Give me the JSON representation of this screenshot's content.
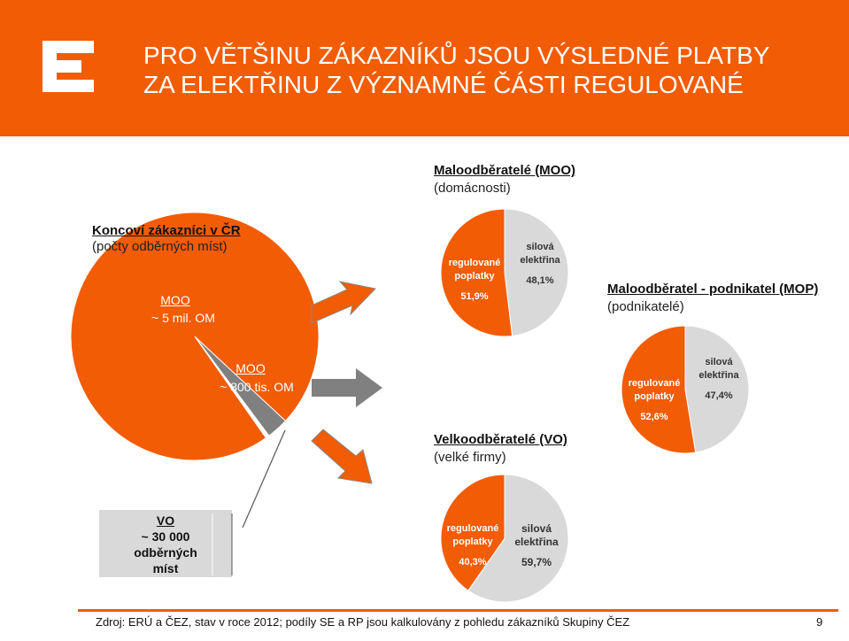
{
  "header": {
    "title_line1": "PRO VĚTŠINU ZÁKAZNÍKŮ JSOU VÝSLEDNÉ PLATBY",
    "title_line2": "ZA ELEKTŘINU Z VÝZNAMNÉ ČÁSTI REGULOVANÉ",
    "logo_color": "#ffffff",
    "brand_color": "#f25c05"
  },
  "left": {
    "title": "Koncoví zákazníci  v ČR",
    "subtitle": "(počty odběrných míst)",
    "moo_label": "MOO",
    "moo_value": "~ 5 mil. OM",
    "mop_label": "MOO",
    "mop_value": "~ 800 tis. OM",
    "vo_label": "VO",
    "vo_value_line1": "~ 30 000",
    "vo_value_line2": "odběrných",
    "vo_value_line3": "míst"
  },
  "groups": {
    "moo_title": "Maloodběratelé (MOO)",
    "moo_sub": "(domácnosti)",
    "mop_title": "Maloodběratel - podnikatel (MOP)",
    "mop_sub": "(podnikatelé)",
    "vo_title": "Velkoodběratelé (VO)",
    "vo_sub": "(velké firmy)"
  },
  "colors": {
    "regulated": "#f25c05",
    "electricity": "#d9d9d9",
    "mop_gray": "#808080",
    "arrow": "#f25c05"
  },
  "chart_data": [
    {
      "type": "pie",
      "title": "Koncoví zákazníci v ČR",
      "categories": [
        "MOO",
        "MOO",
        "VO"
      ],
      "values": [
        5000000,
        800000,
        30000
      ],
      "labels": [
        "~ 5 mil. OM",
        "~ 800 tis. OM",
        "~ 30 000 odběrných míst"
      ]
    },
    {
      "type": "pie",
      "title": "Maloodběratelé (MOO)",
      "categories": [
        "regulované poplatky",
        "silová elektřina"
      ],
      "values": [
        51.9,
        48.1
      ],
      "labels": [
        "51,9%",
        "48,1%"
      ]
    },
    {
      "type": "pie",
      "title": "Maloodběratel - podnikatel (MOP)",
      "categories": [
        "regulované poplatky",
        "silová elektřina"
      ],
      "values": [
        52.6,
        47.4
      ],
      "labels": [
        "52,6%",
        "47,4%"
      ]
    },
    {
      "type": "pie",
      "title": "Velkoodběratelé (VO)",
      "categories": [
        "regulované poplatky",
        "silová elektřina"
      ],
      "values": [
        40.3,
        59.7
      ],
      "labels": [
        "40,3%",
        "59,7%"
      ]
    }
  ],
  "slice_labels": {
    "reg_line1": "regulované",
    "reg_line2": "poplatky",
    "sil_line1": "silová",
    "sil_line2": "elektřina"
  },
  "footer": {
    "source": "Zdroj: ERÚ a ČEZ, stav v roce 2012; podíly SE a RP jsou kalkulovány z pohledu zákazníků Skupiny ČEZ",
    "page_number": "9"
  }
}
